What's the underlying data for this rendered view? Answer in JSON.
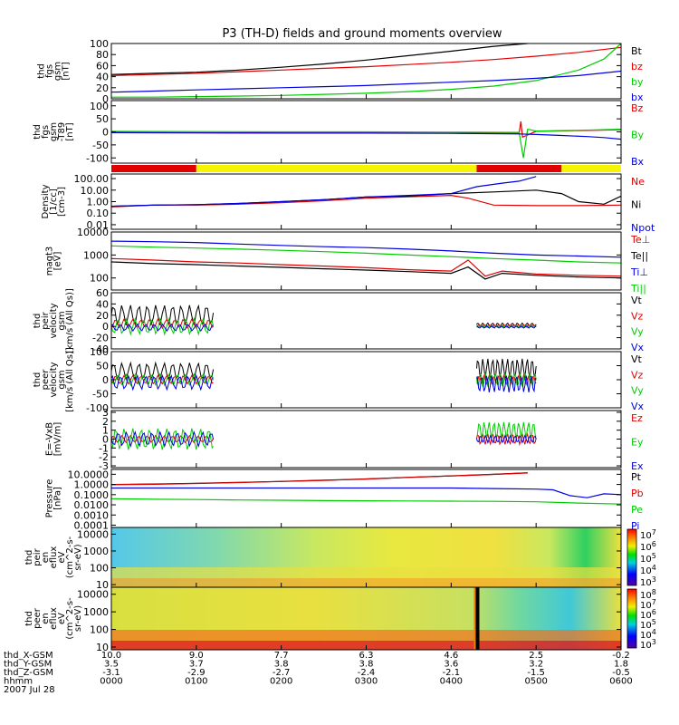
{
  "title": "P3 (TH-D) fields and ground moments overview",
  "colors": {
    "black": "#000000",
    "red": "#e00000",
    "green": "#00cc00",
    "blue": "#0000e0",
    "yellow": "#f5f500"
  },
  "chart_data": [
    {
      "type": "line",
      "id": "fgs",
      "ylabel": [
        "thd",
        "fgs",
        "gsm",
        "[nT]"
      ],
      "ylim": [
        0,
        100
      ],
      "yticks": [
        "100",
        "80",
        "60",
        "40",
        "20",
        "0"
      ],
      "legend": [
        "Bt",
        "bz",
        "by",
        "bx"
      ],
      "legend_colors": [
        "#000000",
        "#e00000",
        "#00cc00",
        "#0000e0"
      ],
      "series": [
        {
          "name": "Bt",
          "x": [
            0,
            0.5,
            1,
            1.5,
            2,
            2.5,
            3,
            3.5,
            4,
            4.5,
            4.9
          ],
          "y": [
            44,
            46,
            48,
            52,
            57,
            63,
            70,
            78,
            86,
            95,
            101
          ]
        },
        {
          "name": "bz",
          "x": [
            0,
            0.5,
            1,
            1.5,
            2,
            2.5,
            3,
            3.5,
            4,
            4.5,
            5,
            5.5,
            6
          ],
          "y": [
            42,
            44,
            46,
            49,
            52,
            55,
            58,
            62,
            66,
            71,
            77,
            84,
            93
          ]
        },
        {
          "name": "by",
          "x": [
            0,
            0.5,
            1,
            1.5,
            2,
            2.5,
            3,
            3.5,
            4,
            4.5,
            5,
            5.5,
            5.8,
            6
          ],
          "y": [
            3,
            3,
            4,
            5,
            6,
            8,
            10,
            13,
            17,
            23,
            33,
            52,
            72,
            100
          ]
        },
        {
          "name": "bx",
          "x": [
            0,
            0.5,
            1,
            1.5,
            2,
            2.5,
            3,
            3.5,
            4,
            4.5,
            5,
            5.5,
            6
          ],
          "y": [
            12,
            14,
            16,
            18,
            20,
            22,
            24,
            27,
            30,
            33,
            37,
            42,
            50
          ]
        }
      ]
    },
    {
      "type": "line",
      "id": "fgs_minus_t89",
      "ylabel": [
        "thd",
        "fgs",
        "gsm",
        "-T89",
        "[nT]"
      ],
      "ylim": [
        -120,
        120
      ],
      "yticks": [
        "100",
        "50",
        "0",
        "-50",
        "-100"
      ],
      "legend": [
        "Bz",
        "By",
        "Bx"
      ],
      "legend_colors": [
        "#e00000",
        "#00cc00",
        "#0000e0"
      ],
      "series": [
        {
          "name": "Bz",
          "x": [
            0,
            1,
            2,
            3,
            4,
            4.8,
            4.82,
            4.84,
            5,
            5.5,
            6
          ],
          "y": [
            -2,
            -3,
            -4,
            -4,
            -5,
            -6,
            40,
            -20,
            2,
            5,
            8
          ]
        },
        {
          "name": "By",
          "x": [
            0,
            1,
            2,
            3,
            4,
            4.8,
            4.85,
            4.9,
            5,
            5.5,
            6
          ],
          "y": [
            2,
            1,
            0,
            0,
            -1,
            -2,
            -100,
            10,
            3,
            6,
            10
          ]
        },
        {
          "name": "Bx",
          "x": [
            0,
            1,
            2,
            3,
            4,
            4.8,
            5,
            5.3,
            5.6,
            5.8,
            6
          ],
          "y": [
            -3,
            -4,
            -5,
            -5,
            -6,
            -8,
            -10,
            -14,
            -18,
            -22,
            -28
          ]
        }
      ]
    },
    {
      "type": "line",
      "id": "density",
      "ylabel": [
        "Density",
        "[1/cc]",
        "[cm-3]"
      ],
      "log": true,
      "ylim": [
        0.004,
        250
      ],
      "yticks": [
        "100.00",
        "10.00",
        "1.00",
        "0.10",
        "0.01"
      ],
      "legend": [
        "Ne",
        "Ni",
        "Npot"
      ],
      "legend_colors": [
        "#e00000",
        "#000000",
        "#0000e0"
      ],
      "series": [
        {
          "name": "Ne",
          "x": [
            0,
            0.5,
            1,
            1.5,
            2,
            2.5,
            3,
            3.5,
            4,
            4.2,
            4.5,
            5,
            5.5,
            6
          ],
          "y": [
            0.35,
            0.5,
            0.5,
            0.6,
            0.8,
            1.2,
            2.0,
            2.6,
            3.5,
            2.0,
            0.5,
            0.45,
            0.45,
            0.5
          ]
        },
        {
          "name": "Ni",
          "x": [
            0,
            0.5,
            1,
            1.5,
            2,
            2.5,
            3,
            3.5,
            4,
            4.5,
            5,
            5.3,
            5.5,
            5.8,
            6
          ],
          "y": [
            0.4,
            0.5,
            0.55,
            0.7,
            1.0,
            1.5,
            2.5,
            3.0,
            5.0,
            7.0,
            10,
            5,
            1.0,
            0.6,
            3.0
          ]
        },
        {
          "name": "Npot",
          "x": [
            0,
            0.5,
            1,
            1.5,
            2,
            2.5,
            3,
            3.5,
            4,
            4.3,
            4.6,
            4.8,
            5.0
          ],
          "y": [
            0.4,
            0.5,
            0.55,
            0.7,
            1.0,
            1.5,
            2.5,
            3.5,
            5.0,
            20,
            40,
            60,
            150
          ]
        }
      ]
    },
    {
      "type": "line",
      "id": "magt3",
      "ylabel": [
        "magt3",
        "[eV]"
      ],
      "log": true,
      "ylim": [
        30,
        10000
      ],
      "yticks": [
        "10000",
        "1000",
        "100"
      ],
      "legend": [
        "Te⊥",
        "Te||",
        "Ti⊥",
        "Ti||"
      ],
      "legend_colors": [
        "#e00000",
        "#000000",
        "#0000e0",
        "#00cc00"
      ],
      "series": [
        {
          "name": "Ti⊥",
          "x": [
            0,
            0.5,
            1,
            1.5,
            2,
            2.5,
            3,
            3.5,
            4,
            4.5,
            5,
            5.5,
            6
          ],
          "y": [
            4000,
            3800,
            3500,
            3000,
            2600,
            2300,
            2100,
            1800,
            1500,
            1200,
            1000,
            900,
            800
          ]
        },
        {
          "name": "Ti||",
          "x": [
            0,
            0.5,
            1,
            1.5,
            2,
            2.5,
            3,
            3.5,
            4,
            4.5,
            5,
            5.5,
            6
          ],
          "y": [
            2500,
            2200,
            2000,
            1800,
            1600,
            1400,
            1200,
            1000,
            850,
            700,
            600,
            500,
            450
          ]
        },
        {
          "name": "Te⊥",
          "x": [
            0,
            0.5,
            1,
            1.5,
            2,
            2.5,
            3,
            3.5,
            4,
            4.2,
            4.4,
            4.6,
            5,
            5.5,
            6
          ],
          "y": [
            700,
            600,
            500,
            450,
            380,
            330,
            280,
            230,
            200,
            600,
            120,
            200,
            150,
            130,
            120
          ]
        },
        {
          "name": "Te||",
          "x": [
            0,
            0.5,
            1,
            1.5,
            2,
            2.5,
            3,
            3.5,
            4,
            4.2,
            4.4,
            4.6,
            5,
            5.5,
            6
          ],
          "y": [
            500,
            420,
            380,
            330,
            290,
            250,
            220,
            190,
            160,
            300,
            90,
            160,
            130,
            110,
            100
          ]
        }
      ]
    },
    {
      "type": "line",
      "id": "peir_velocity",
      "ylabel": [
        "thd",
        "peir",
        "velocity",
        "gsm",
        "[km/s (All Qs)]"
      ],
      "ylim": [
        -40,
        60
      ],
      "yticks": [
        "60",
        "40",
        "20",
        "0",
        "-20",
        "-40"
      ],
      "legend": [
        "Vt",
        "Vz",
        "Vy",
        "Vx"
      ],
      "legend_colors": [
        "#000000",
        "#e00000",
        "#00cc00",
        "#0000e0"
      ],
      "series": [
        {
          "name": "Vt",
          "segments": [
            [
              0,
              1.2
            ],
            [
              4.3,
              5.0
            ]
          ],
          "center": [
            20,
            3
          ],
          "amp": [
            18,
            3
          ]
        },
        {
          "name": "Vz",
          "segments": [
            [
              0,
              1.2
            ],
            [
              4.3,
              5.0
            ]
          ],
          "center": [
            5,
            1
          ],
          "amp": [
            8,
            2
          ]
        },
        {
          "name": "Vy",
          "segments": [
            [
              0,
              1.2
            ],
            [
              4.3,
              5.0
            ]
          ],
          "center": [
            0,
            0
          ],
          "amp": [
            14,
            2
          ]
        },
        {
          "name": "Vx",
          "segments": [
            [
              0,
              1.2
            ],
            [
              4.3,
              5.0
            ]
          ],
          "center": [
            -2,
            -1
          ],
          "amp": [
            6,
            2
          ]
        }
      ]
    },
    {
      "type": "line",
      "id": "peer_velocity",
      "ylabel": [
        "thd",
        "peer",
        "velocity",
        "gsm",
        "[km/s (All Qs)]"
      ],
      "ylim": [
        -100,
        100
      ],
      "yticks": [
        "100",
        "50",
        "0",
        "-50",
        "-100"
      ],
      "legend": [
        "Vt",
        "Vz",
        "Vy",
        "Vx"
      ],
      "legend_colors": [
        "#000000",
        "#e00000",
        "#00cc00",
        "#0000e0"
      ],
      "series": [
        {
          "name": "Vt",
          "segments": [
            [
              0,
              1.2
            ],
            [
              4.3,
              5.0
            ]
          ],
          "center": [
            30,
            40
          ],
          "amp": [
            30,
            35
          ]
        },
        {
          "name": "Vz",
          "segments": [
            [
              0,
              1.2
            ],
            [
              4.3,
              5.0
            ]
          ],
          "center": [
            0,
            0
          ],
          "amp": [
            15,
            15
          ]
        },
        {
          "name": "Vy",
          "segments": [
            [
              0,
              1.2
            ],
            [
              4.3,
              5.0
            ]
          ],
          "center": [
            0,
            0
          ],
          "amp": [
            20,
            25
          ]
        },
        {
          "name": "Vx",
          "segments": [
            [
              0,
              1.2
            ],
            [
              4.3,
              5.0
            ]
          ],
          "center": [
            -10,
            -15
          ],
          "amp": [
            25,
            30
          ]
        }
      ]
    },
    {
      "type": "line",
      "id": "efield",
      "ylabel": [
        "E=-VxB",
        "[mV/m]"
      ],
      "ylim": [
        -3.2,
        3.2
      ],
      "yticks": [
        "3",
        "2",
        "1",
        "0",
        "-1",
        "-2",
        "-3"
      ],
      "legend": [
        "Ez",
        "Ey",
        "Ex"
      ],
      "legend_colors": [
        "#e00000",
        "#00cc00",
        "#0000e0"
      ],
      "series": [
        {
          "name": "Ez",
          "segments": [
            [
              0,
              1.2
            ],
            [
              4.3,
              5.0
            ]
          ],
          "center": [
            0,
            0
          ],
          "amp": [
            0.4,
            0.6
          ]
        },
        {
          "name": "Ey",
          "segments": [
            [
              0,
              1.2
            ],
            [
              4.3,
              5.0
            ]
          ],
          "center": [
            0,
            1.0
          ],
          "amp": [
            1.2,
            0.9
          ]
        },
        {
          "name": "Ex",
          "segments": [
            [
              0,
              1.2
            ],
            [
              4.3,
              5.0
            ]
          ],
          "center": [
            0,
            0
          ],
          "amp": [
            0.8,
            0.4
          ]
        }
      ]
    },
    {
      "type": "line",
      "id": "pressure",
      "ylabel": [
        "Pressure",
        "[nPa]"
      ],
      "log": true,
      "ylim": [
        6e-05,
        30
      ],
      "yticks": [
        "10.0000",
        "1.0000",
        "0.1000",
        "0.0100",
        "0.0010",
        "0.0001"
      ],
      "legend": [
        "Pt",
        "Pb",
        "Pe",
        "Pi"
      ],
      "legend_colors": [
        "#000000",
        "#e00000",
        "#00cc00",
        "#0000e0"
      ],
      "series": [
        {
          "name": "Pt",
          "x": [
            0,
            0.5,
            1,
            1.5,
            2,
            2.5,
            3,
            3.5,
            4,
            4.5,
            4.9
          ],
          "y": [
            1.0,
            1.1,
            1.3,
            1.6,
            2.0,
            2.6,
            3.5,
            5,
            7,
            10,
            14
          ]
        },
        {
          "name": "Pb",
          "x": [
            0,
            0.5,
            1,
            1.5,
            2,
            2.5,
            3,
            3.5,
            4,
            4.5,
            4.9
          ],
          "y": [
            0.95,
            1.05,
            1.25,
            1.55,
            1.95,
            2.5,
            3.4,
            4.9,
            6.8,
            9.8,
            13.5
          ]
        },
        {
          "name": "Pe",
          "x": [
            0,
            0.5,
            1,
            1.5,
            2,
            2.5,
            3,
            3.5,
            4,
            4.5,
            5,
            5.5,
            6
          ],
          "y": [
            0.04,
            0.035,
            0.033,
            0.03,
            0.028,
            0.026,
            0.025,
            0.024,
            0.023,
            0.022,
            0.02,
            0.015,
            0.012
          ]
        },
        {
          "name": "Pi",
          "x": [
            0,
            0.5,
            1,
            1.5,
            2,
            2.5,
            3,
            3.5,
            4,
            4.5,
            5,
            5.2,
            5.4,
            5.6,
            5.8,
            6
          ],
          "y": [
            0.45,
            0.45,
            0.45,
            0.45,
            0.45,
            0.45,
            0.45,
            0.45,
            0.45,
            0.4,
            0.35,
            0.3,
            0.08,
            0.05,
            0.12,
            0.1
          ]
        }
      ]
    },
    {
      "type": "heatmap",
      "id": "peir_en_eflux",
      "ylabel": [
        "thd",
        "peir",
        "en",
        "eflux",
        "eV",
        "(cm^2-s-",
        "sr-eV)"
      ],
      "log": true,
      "ylim": [
        7,
        25000
      ],
      "yticks": [
        "10000",
        "1000",
        "100",
        "10"
      ],
      "colorbar": {
        "labels": [
          "10^7",
          "10^6",
          "10^5",
          "10^4",
          "10^3"
        ]
      }
    },
    {
      "type": "heatmap",
      "id": "peer_en_eflux",
      "ylabel": [
        "thd",
        "peer",
        "en",
        "eflux",
        "eV",
        "(cm^2-s-",
        "sr-eV)"
      ],
      "log": true,
      "ylim": [
        7,
        25000
      ],
      "yticks": [
        "10000",
        "1000",
        "100",
        "10"
      ],
      "colorbar": {
        "labels": [
          "10^8",
          "10^7",
          "10^6",
          "10^5",
          "10^4",
          "10^3"
        ]
      }
    }
  ],
  "status_bar": {
    "segments": [
      {
        "from": 0,
        "to": 1.0,
        "color": "#e00000"
      },
      {
        "from": 1.0,
        "to": 4.3,
        "color": "#f5f500"
      },
      {
        "from": 4.3,
        "to": 5.3,
        "color": "#e00000"
      },
      {
        "from": 5.3,
        "to": 6.0,
        "color": "#f5f500"
      }
    ]
  },
  "xaxis": {
    "rows": [
      {
        "label": "thd_X-GSM",
        "values": [
          "10.0",
          "9.0",
          "7.7",
          "6.3",
          "4.6",
          "2.5",
          "-0.2"
        ]
      },
      {
        "label": "thd_Y-GSM",
        "values": [
          "3.5",
          "3.7",
          "3.8",
          "3.8",
          "3.6",
          "3.2",
          "1.8"
        ]
      },
      {
        "label": "thd_Z-GSM",
        "values": [
          "-3.1",
          "-2.9",
          "-2.7",
          "-2.4",
          "-2.1",
          "-1.5",
          "-0.5"
        ]
      },
      {
        "label": "hhmm",
        "values": [
          "0000",
          "0100",
          "0200",
          "0300",
          "0400",
          "0500",
          "0600"
        ]
      }
    ],
    "date": "2007 Jul 28"
  }
}
